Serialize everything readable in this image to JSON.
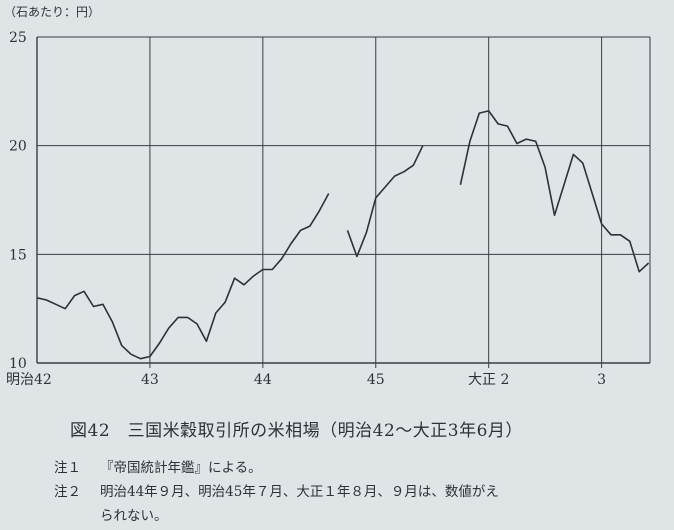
{
  "chart_data": {
    "type": "line",
    "unit_label": "（石あたり：円）",
    "ylim": [
      10,
      25
    ],
    "yticks": [
      10,
      15,
      20,
      25
    ],
    "xticks": [
      {
        "label": "明治42",
        "x": 0
      },
      {
        "label": "43",
        "x": 12
      },
      {
        "label": "44",
        "x": 24
      },
      {
        "label": "45",
        "x": 36
      },
      {
        "label": "大正 2",
        "x": 48
      },
      {
        "label": "3",
        "x": 60
      }
    ],
    "grid": true,
    "series": [
      {
        "segments": [
          [
            [
              0,
              13.0
            ],
            [
              1,
              12.9
            ],
            [
              2,
              12.7
            ],
            [
              3,
              12.5
            ],
            [
              4,
              13.1
            ],
            [
              5,
              13.3
            ],
            [
              6,
              12.6
            ],
            [
              7,
              12.7
            ],
            [
              8,
              11.9
            ],
            [
              9,
              10.8
            ],
            [
              10,
              10.4
            ],
            [
              11,
              10.2
            ],
            [
              12,
              10.3
            ],
            [
              13,
              10.9
            ],
            [
              14,
              11.6
            ],
            [
              15,
              12.1
            ],
            [
              16,
              12.1
            ],
            [
              17,
              11.8
            ],
            [
              18,
              11.0
            ],
            [
              19,
              12.3
            ],
            [
              20,
              12.8
            ],
            [
              21,
              13.9
            ],
            [
              22,
              13.6
            ],
            [
              23,
              14.0
            ],
            [
              24,
              14.3
            ],
            [
              25,
              14.3
            ],
            [
              26,
              14.8
            ],
            [
              27,
              15.5
            ],
            [
              28,
              16.1
            ],
            [
              29,
              16.3
            ],
            [
              30,
              17.0
            ],
            [
              31,
              17.8
            ]
          ],
          [
            [
              33,
              16.1
            ],
            [
              34,
              14.9
            ],
            [
              35,
              16.0
            ],
            [
              36,
              17.6
            ],
            [
              37,
              18.1
            ],
            [
              38,
              18.6
            ],
            [
              39,
              18.8
            ],
            [
              40,
              19.1
            ],
            [
              41,
              20.0
            ]
          ],
          [
            [
              45,
              18.2
            ],
            [
              46,
              20.2
            ],
            [
              47,
              21.5
            ],
            [
              48,
              21.6
            ],
            [
              49,
              21.0
            ],
            [
              50,
              20.9
            ],
            [
              51,
              20.1
            ],
            [
              52,
              20.3
            ],
            [
              53,
              20.2
            ],
            [
              54,
              19.0
            ],
            [
              55,
              16.8
            ],
            [
              56,
              18.2
            ],
            [
              57,
              19.6
            ],
            [
              58,
              19.2
            ],
            [
              59,
              17.8
            ],
            [
              60,
              16.4
            ],
            [
              61,
              15.9
            ],
            [
              62,
              15.9
            ],
            [
              63,
              15.6
            ],
            [
              64,
              14.2
            ],
            [
              65,
              14.6
            ]
          ]
        ]
      }
    ]
  },
  "caption": "図42　三国米穀取引所の米相場（明治42～大正3年6月）",
  "notes": [
    {
      "label": "注１",
      "text": "『帝国統計年鑑』による。"
    },
    {
      "label": "注２",
      "text": "明治44年９月、明治45年７月、大正１年８月、９月は、数値がえ",
      "continuation": "られない。"
    }
  ]
}
